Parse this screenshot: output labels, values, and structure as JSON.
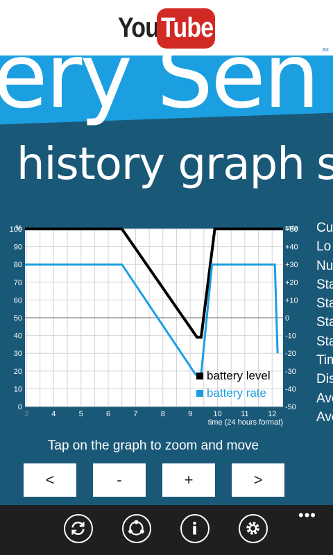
{
  "ad": {
    "brand_you": "You",
    "brand_tube": "Tube",
    "badge": "ax"
  },
  "banner": {
    "title_fragment": "ery Sen"
  },
  "page": {
    "title": "history graph",
    "next_title": "s"
  },
  "side_list": [
    "Cu",
    "Lo",
    "Nu",
    "Sta",
    "Sta",
    "Sta",
    "Sta",
    "Tim",
    "Dis",
    "Ave",
    "Ave"
  ],
  "chart_data": {
    "type": "line",
    "xlabel": "time (24 hours format)",
    "x_ticks": [
      "3",
      "4",
      "5",
      "6",
      "7",
      "8",
      "9",
      "10",
      "11",
      "12"
    ],
    "xlim": [
      2.95,
      12.4
    ],
    "y_left": {
      "label": "%",
      "ticks": [
        "0",
        "10",
        "20",
        "30",
        "40",
        "50",
        "60",
        "70",
        "80",
        "90",
        "100"
      ],
      "range": [
        0,
        100
      ]
    },
    "y_right": {
      "label": "rate",
      "ticks": [
        "-50",
        "-40",
        "-30",
        "-20",
        "-10",
        "0",
        "+10",
        "+20",
        "+30",
        "+40",
        "+50"
      ],
      "range": [
        -50,
        50
      ]
    },
    "series": [
      {
        "name": "battery level",
        "color": "#000000",
        "axis": "left",
        "points": [
          [
            2.95,
            100
          ],
          [
            6.5,
            100
          ],
          [
            9.25,
            39
          ],
          [
            9.4,
            39
          ],
          [
            9.9,
            100
          ],
          [
            12.4,
            100
          ]
        ]
      },
      {
        "name": "battery rate",
        "color": "#1c9fe0",
        "axis": "right",
        "points": [
          [
            2.95,
            30
          ],
          [
            6.5,
            30
          ],
          [
            9.2,
            -32
          ],
          [
            9.4,
            -32
          ],
          [
            9.8,
            30
          ],
          [
            12.1,
            30
          ],
          [
            12.2,
            -20
          ]
        ]
      }
    ],
    "grid": true,
    "legend": "bottom-right"
  },
  "hint": "Tap on the graph to zoom and move",
  "zoom": {
    "prev": "<",
    "out": "-",
    "in": "+",
    "next": ">"
  },
  "appbar": {
    "more": "•••",
    "icons": [
      "refresh-icon",
      "share-icon",
      "info-icon",
      "settings-icon"
    ]
  }
}
